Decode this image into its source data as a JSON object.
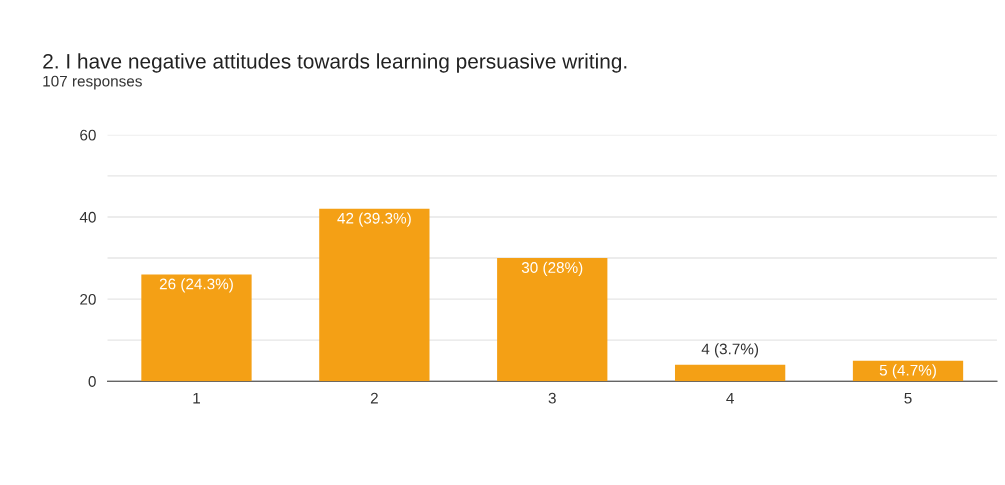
{
  "chart_data": {
    "type": "bar",
    "title": "2. I have negative attitudes towards learning persuasive writing.",
    "subtitle": "107 responses",
    "categories": [
      "1",
      "2",
      "3",
      "4",
      "5"
    ],
    "values": [
      26,
      42,
      30,
      4,
      5
    ],
    "value_labels": [
      "26 (24.3%)",
      "42 (39.3%)",
      "30 (28%)",
      "4 (3.7%)",
      "5 (4.7%)"
    ],
    "color": "#f4a015",
    "ylim": [
      0,
      60
    ],
    "yticks": [
      0,
      {
        "value": 10,
        "label": null
      },
      20,
      {
        "value": 30,
        "label": null
      },
      40,
      {
        "value": 50,
        "label": null
      },
      60
    ],
    "grid": "y"
  }
}
